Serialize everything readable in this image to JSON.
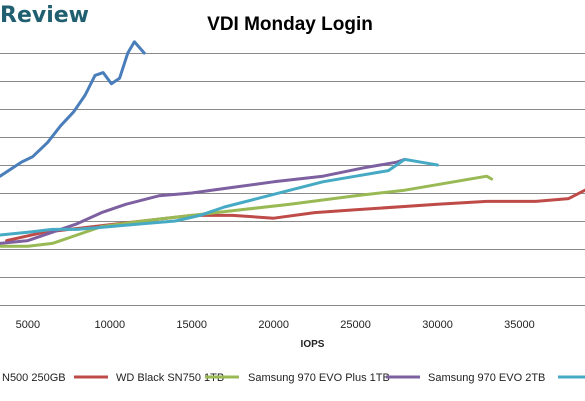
{
  "header": {
    "brand": "Review"
  },
  "chart_data": {
    "type": "line",
    "title": "VDI Monday Login",
    "xlabel": "IOPS",
    "ylabel": "",
    "xlim": [
      3300,
      39000
    ],
    "ylim": [
      0,
      10
    ],
    "x_ticks": [
      5000,
      10000,
      15000,
      20000,
      25000,
      30000,
      35000
    ],
    "x_tick_labels": [
      "5000",
      "10000",
      "15000",
      "20000",
      "25000",
      "30000",
      "35000"
    ],
    "y_gridlines": [
      1,
      2,
      3,
      4,
      5,
      6,
      7,
      8,
      9
    ],
    "grid": true,
    "legend_position": "bottom",
    "series": [
      {
        "name": "N500 250GB",
        "color": "#4a7ebb",
        "points": [
          [
            3300,
            4.6
          ],
          [
            4600,
            5.1
          ],
          [
            5300,
            5.3
          ],
          [
            6200,
            5.8
          ],
          [
            7000,
            6.4
          ],
          [
            7800,
            6.9
          ],
          [
            8500,
            7.5
          ],
          [
            9100,
            8.2
          ],
          [
            9600,
            8.3
          ],
          [
            10100,
            7.9
          ],
          [
            10600,
            8.1
          ],
          [
            11100,
            9.0
          ],
          [
            11500,
            9.4
          ],
          [
            12100,
            9.0
          ]
        ]
      },
      {
        "name": "WD Black SN750 1TB",
        "color": "#be4b48",
        "points": [
          [
            3700,
            2.3
          ],
          [
            6000,
            2.6
          ],
          [
            9000,
            2.8
          ],
          [
            12000,
            3.0
          ],
          [
            15000,
            3.2
          ],
          [
            17500,
            3.2
          ],
          [
            20000,
            3.1
          ],
          [
            22500,
            3.3
          ],
          [
            25000,
            3.4
          ],
          [
            30000,
            3.6
          ],
          [
            33000,
            3.7
          ],
          [
            36000,
            3.7
          ],
          [
            38000,
            3.8
          ],
          [
            39000,
            4.1
          ]
        ]
      },
      {
        "name": "Samsung 970 EVO Plus 1TB",
        "color": "#98b954",
        "points": [
          [
            3300,
            2.1
          ],
          [
            5000,
            2.1
          ],
          [
            6500,
            2.2
          ],
          [
            8000,
            2.5
          ],
          [
            9500,
            2.8
          ],
          [
            12000,
            3.0
          ],
          [
            15000,
            3.2
          ],
          [
            18000,
            3.4
          ],
          [
            21000,
            3.6
          ],
          [
            25000,
            3.9
          ],
          [
            28000,
            4.1
          ],
          [
            31000,
            4.4
          ],
          [
            33000,
            4.6
          ],
          [
            33300,
            4.5
          ]
        ]
      },
      {
        "name": "Samsung 970 EVO 2TB",
        "color": "#7d60a0",
        "points": [
          [
            3300,
            2.2
          ],
          [
            5000,
            2.3
          ],
          [
            6500,
            2.6
          ],
          [
            8000,
            2.9
          ],
          [
            9500,
            3.3
          ],
          [
            11000,
            3.6
          ],
          [
            13000,
            3.9
          ],
          [
            15000,
            4.0
          ],
          [
            17500,
            4.2
          ],
          [
            20000,
            4.4
          ],
          [
            23000,
            4.6
          ],
          [
            25500,
            4.9
          ],
          [
            27500,
            5.1
          ],
          [
            28000,
            5.2
          ]
        ]
      },
      {
        "name": "",
        "color": "#46aac5",
        "points": [
          [
            3300,
            2.5
          ],
          [
            5000,
            2.6
          ],
          [
            6500,
            2.7
          ],
          [
            8000,
            2.7
          ],
          [
            10000,
            2.8
          ],
          [
            12000,
            2.9
          ],
          [
            14000,
            3.0
          ],
          [
            15500,
            3.2
          ],
          [
            17000,
            3.5
          ],
          [
            19000,
            3.8
          ],
          [
            21000,
            4.1
          ],
          [
            23000,
            4.4
          ],
          [
            25000,
            4.6
          ],
          [
            27000,
            4.8
          ],
          [
            28000,
            5.2
          ],
          [
            29000,
            5.1
          ],
          [
            30000,
            5.0
          ]
        ]
      }
    ]
  },
  "legend": {
    "entries": [
      {
        "label": "N500 250GB",
        "color": "#4a7ebb"
      },
      {
        "label": "WD Black SN750 1TB",
        "color": "#be4b48"
      },
      {
        "label": "Samsung 970 EVO Plus 1TB",
        "color": "#98b954"
      },
      {
        "label": "Samsung 970 EVO 2TB",
        "color": "#7d60a0"
      },
      {
        "label": "",
        "color": "#46aac5"
      }
    ]
  }
}
